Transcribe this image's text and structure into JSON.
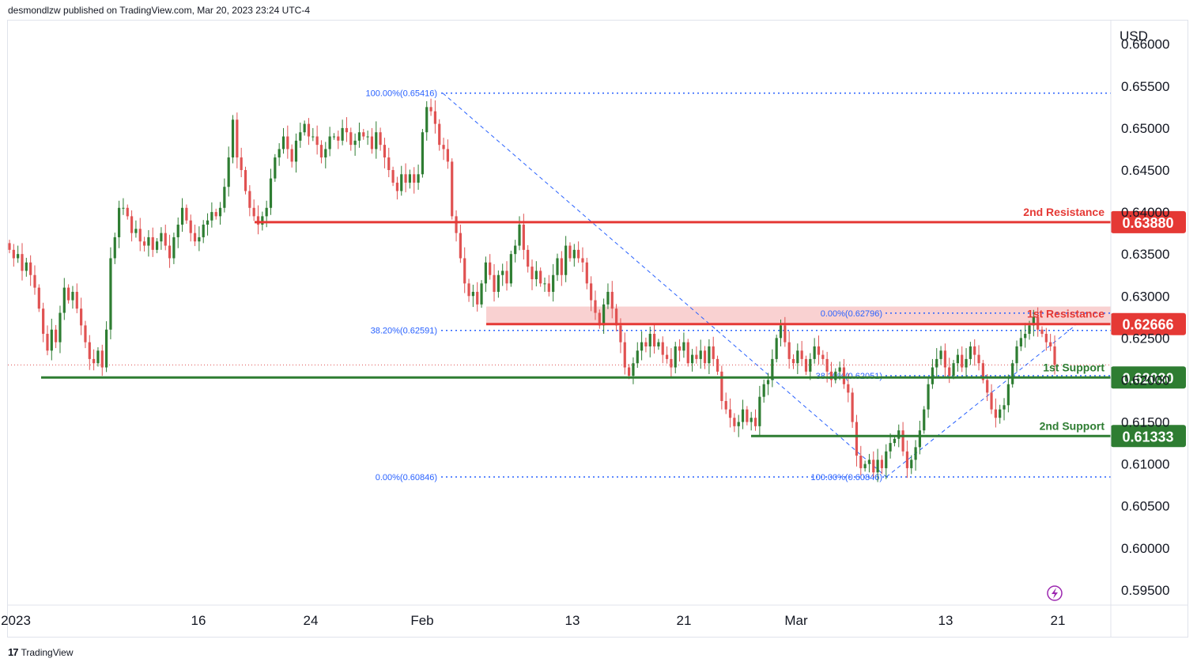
{
  "header": {
    "text": "desmondlzw published on TradingView.com, Mar 20, 2023 23:24 UTC-4"
  },
  "footer": {
    "logo": "17",
    "brand": "TradingView"
  },
  "chart_data": {
    "type": "candlestick",
    "currency": "USD",
    "ylim": [
      0.5932,
      0.6628
    ],
    "y_ticks": [
      "0.66000",
      "0.65500",
      "0.65000",
      "0.64500",
      "0.64000",
      "0.63500",
      "0.63000",
      "0.62500",
      "0.62000",
      "0.61500",
      "0.61000",
      "0.60500",
      "0.60000",
      "0.59500"
    ],
    "x_ticks": [
      "2023",
      "16",
      "24",
      "Feb",
      "13",
      "21",
      "Mar",
      "13",
      "21"
    ],
    "colors": {
      "up": "#2e7d32",
      "down": "#e05252",
      "resistance": "#e53935",
      "support": "#2e7d32",
      "fib": "#2962ff",
      "zone": "#f8c9c9"
    },
    "levels": [
      {
        "name": "2nd Resistance",
        "value": 0.6388,
        "label": "0.63880",
        "kind": "resistance"
      },
      {
        "name": "1st Resistance",
        "value": 0.62666,
        "label": "0.62666",
        "kind": "resistance"
      },
      {
        "name": "1st Support",
        "value": 0.6203,
        "label": "0.62030",
        "kind": "support"
      },
      {
        "name": "2nd Support",
        "value": 0.61333,
        "label": "0.61333",
        "kind": "support"
      }
    ],
    "resistance_zone": {
      "low": 0.62666,
      "high": 0.62875
    },
    "fib_labels": [
      {
        "text": "100.00%(0.65416)",
        "value": 0.65416
      },
      {
        "text": "38.20%(0.62591)",
        "value": 0.62591
      },
      {
        "text": "0.00%(0.60846)",
        "value": 0.60846
      },
      {
        "text": "0.00%(0.62796)",
        "value": 0.62796
      },
      {
        "text": "38.20%(0.62051)",
        "value": 0.62051
      },
      {
        "text": "100.00%(0.60846)",
        "value": 0.60846
      }
    ],
    "current_price": 0.6218,
    "candles_close": [
      0.6355,
      0.6345,
      0.635,
      0.633,
      0.634,
      0.6325,
      0.631,
      0.6285,
      0.6255,
      0.6235,
      0.626,
      0.6245,
      0.628,
      0.631,
      0.6295,
      0.6305,
      0.6285,
      0.6265,
      0.6245,
      0.6225,
      0.622,
      0.6235,
      0.6215,
      0.626,
      0.6345,
      0.637,
      0.6405,
      0.6405,
      0.6395,
      0.6375,
      0.638,
      0.6365,
      0.636,
      0.637,
      0.6355,
      0.6365,
      0.6375,
      0.636,
      0.6345,
      0.637,
      0.6385,
      0.6405,
      0.639,
      0.6375,
      0.6365,
      0.637,
      0.6385,
      0.639,
      0.64,
      0.6395,
      0.6405,
      0.643,
      0.6465,
      0.651,
      0.6465,
      0.645,
      0.6425,
      0.6405,
      0.6395,
      0.6385,
      0.6395,
      0.6405,
      0.644,
      0.6465,
      0.6475,
      0.649,
      0.6475,
      0.646,
      0.6485,
      0.6495,
      0.6505,
      0.649,
      0.649,
      0.648,
      0.6465,
      0.6475,
      0.649,
      0.649,
      0.6485,
      0.65,
      0.6495,
      0.648,
      0.6485,
      0.6495,
      0.649,
      0.649,
      0.6475,
      0.6495,
      0.648,
      0.6465,
      0.645,
      0.6435,
      0.6425,
      0.6445,
      0.6435,
      0.6445,
      0.6435,
      0.6445,
      0.6495,
      0.6525,
      0.652,
      0.6505,
      0.648,
      0.6475,
      0.646,
      0.6395,
      0.6375,
      0.6345,
      0.6315,
      0.63,
      0.6305,
      0.629,
      0.6315,
      0.634,
      0.6325,
      0.6305,
      0.6325,
      0.633,
      0.6315,
      0.635,
      0.636,
      0.6385,
      0.6355,
      0.6335,
      0.632,
      0.633,
      0.6315,
      0.6315,
      0.6305,
      0.6325,
      0.6345,
      0.6325,
      0.636,
      0.6345,
      0.6355,
      0.6345,
      0.634,
      0.6315,
      0.6295,
      0.628,
      0.6265,
      0.629,
      0.6305,
      0.6285,
      0.6265,
      0.6245,
      0.6215,
      0.6205,
      0.622,
      0.6235,
      0.6245,
      0.624,
      0.6255,
      0.624,
      0.6245,
      0.623,
      0.6225,
      0.6215,
      0.624,
      0.6235,
      0.6245,
      0.622,
      0.623,
      0.6225,
      0.6235,
      0.622,
      0.624,
      0.6225,
      0.621,
      0.6175,
      0.6165,
      0.6155,
      0.6145,
      0.615,
      0.6165,
      0.615,
      0.6155,
      0.6145,
      0.618,
      0.6195,
      0.62,
      0.6225,
      0.625,
      0.6265,
      0.6245,
      0.6225,
      0.622,
      0.6235,
      0.6225,
      0.621,
      0.6225,
      0.624,
      0.623,
      0.6225,
      0.621,
      0.62,
      0.621,
      0.6215,
      0.6195,
      0.6185,
      0.615,
      0.611,
      0.6095,
      0.61,
      0.6105,
      0.609,
      0.6105,
      0.6095,
      0.6115,
      0.6125,
      0.613,
      0.614,
      0.6115,
      0.6095,
      0.6105,
      0.612,
      0.614,
      0.6165,
      0.6195,
      0.6215,
      0.6225,
      0.6235,
      0.6215,
      0.6205,
      0.622,
      0.623,
      0.6215,
      0.6225,
      0.624,
      0.623,
      0.622,
      0.62,
      0.6185,
      0.6165,
      0.6155,
      0.6165,
      0.617,
      0.6195,
      0.622,
      0.624,
      0.625,
      0.6255,
      0.6265,
      0.6275,
      0.626,
      0.6255,
      0.6245,
      0.624,
      0.6218
    ]
  }
}
